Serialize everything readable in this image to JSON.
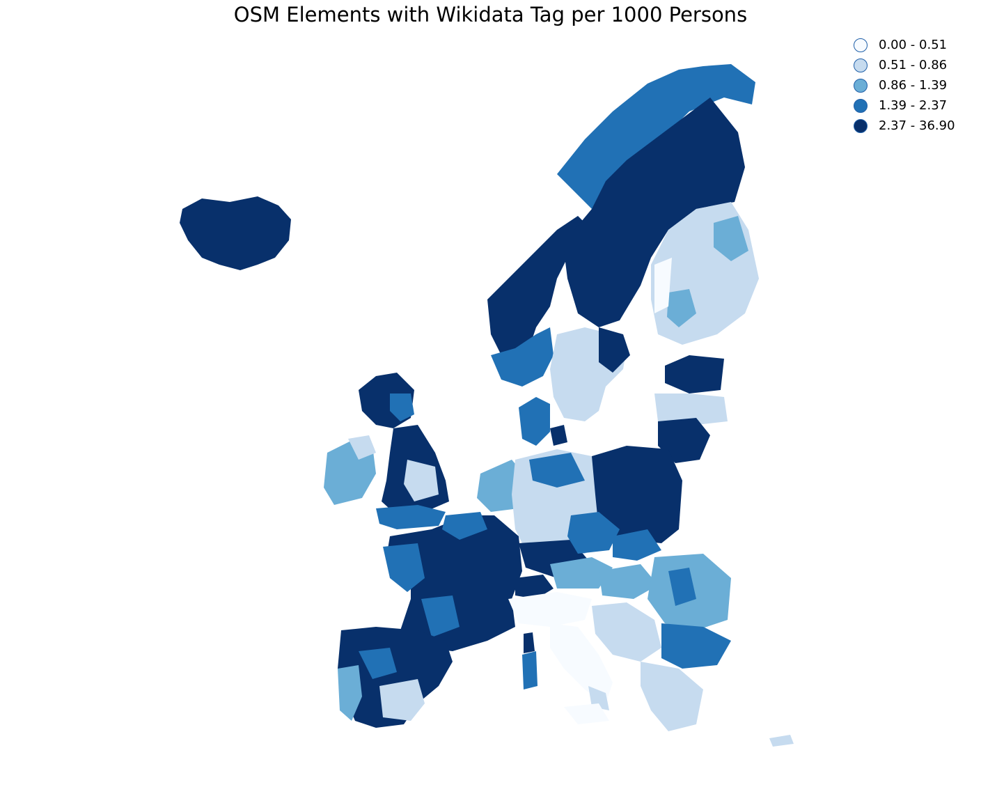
{
  "title": "OSM Elements with Wikidata Tag per 1000 Persons",
  "legend": {
    "items": [
      {
        "label": "0.00 - 0.51",
        "color": "#f7fbff"
      },
      {
        "label": "0.51 - 0.86",
        "color": "#c6dbef"
      },
      {
        "label": "0.86 - 1.39",
        "color": "#6baed6"
      },
      {
        "label": "1.39 - 2.37",
        "color": "#2171b5"
      },
      {
        "label": "2.37 - 36.90",
        "color": "#08306b"
      }
    ]
  },
  "map": {
    "type": "choropleth",
    "classes": [
      "0.00 - 0.51",
      "0.51 - 0.86",
      "0.86 - 1.39",
      "1.39 - 2.37",
      "2.37 - 36.90"
    ]
  }
}
